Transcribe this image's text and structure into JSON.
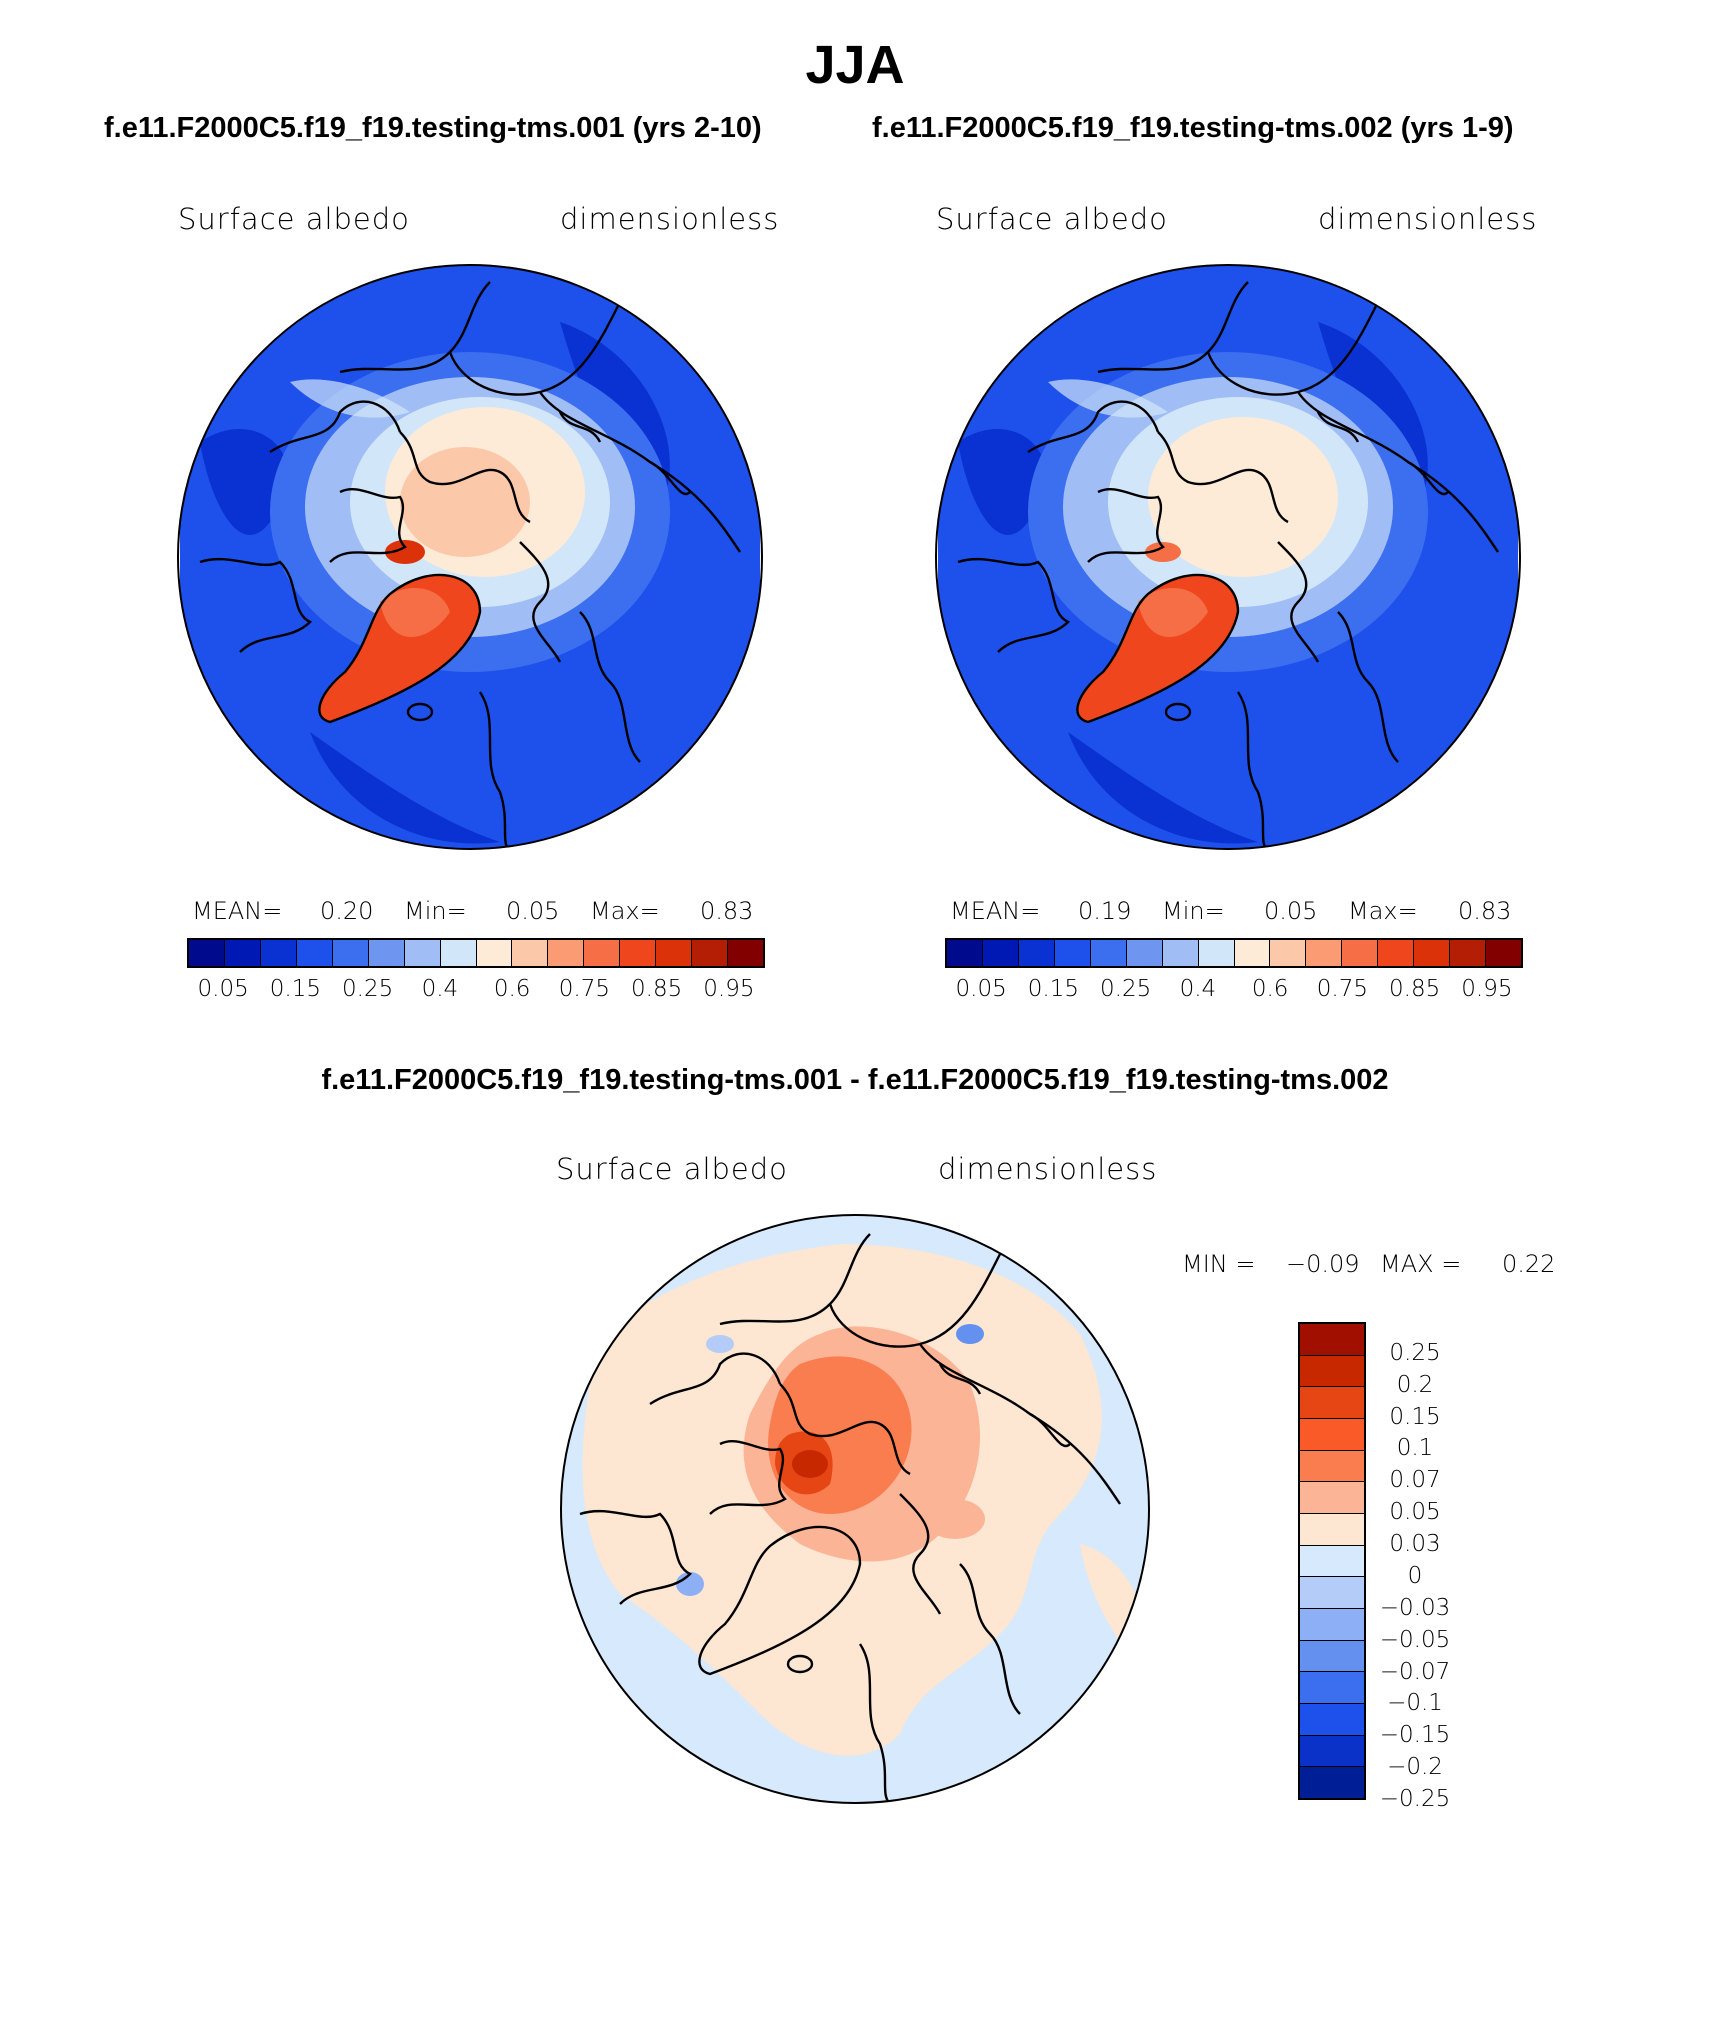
{
  "header": {
    "title": "JJA",
    "case1_title": "f.e11.F2000C5.f19_f19.testing-tms.001 (yrs 2-10)",
    "case2_title": "f.e11.F2000C5.f19_f19.testing-tms.002 (yrs 1-9)",
    "diff_title": "f.e11.F2000C5.f19_f19.testing-tms.001 - f.e11.F2000C5.f19_f19.testing-tms.002"
  },
  "panels": {
    "case1": {
      "variable": "Surface albedo",
      "units": "dimensionless",
      "mean_label": "MEAN=",
      "mean_value": "0.20",
      "min_label": "Min=",
      "min_value": "0.05",
      "max_label": "Max=",
      "max_value": "0.83"
    },
    "case2": {
      "variable": "Surface albedo",
      "units": "dimensionless",
      "mean_label": "MEAN=",
      "mean_value": "0.19",
      "min_label": "Min=",
      "min_value": "0.05",
      "max_label": "Max=",
      "max_value": "0.83"
    },
    "diff": {
      "variable": "Surface albedo",
      "units": "dimensionless",
      "min_label": "MIN =",
      "min_value": "−0.09",
      "max_label": "MAX =",
      "max_value": "0.22"
    }
  },
  "colorbar_abs": {
    "colors": [
      "#000a8c",
      "#0019b4",
      "#0a32d2",
      "#1e50eb",
      "#3c6ef0",
      "#6e96f0",
      "#a0bef5",
      "#d2e6fa",
      "#fdebd7",
      "#fcc8aa",
      "#fa9b73",
      "#f56e46",
      "#f0461e",
      "#dc320a",
      "#b41e05",
      "#820000"
    ],
    "tick_labels": [
      "0.05",
      "0.15",
      "0.25",
      "0.4",
      "0.6",
      "0.75",
      "0.85",
      "0.95"
    ]
  },
  "colorbar_diff": {
    "colors": [
      "#a00f00",
      "#c82800",
      "#e64614",
      "#fa5a28",
      "#fa7d50",
      "#fcb496",
      "#fde6d2",
      "#d7e9fc",
      "#b4cdf8",
      "#8caff5",
      "#6491f0",
      "#3c6ef0",
      "#1e50eb",
      "#0a32c8",
      "#001e96"
    ],
    "tick_labels": [
      "0.25",
      "0.2",
      "0.15",
      "0.1",
      "0.07",
      "0.05",
      "0.03",
      "0",
      "−0.03",
      "−0.05",
      "−0.07",
      "−0.1",
      "−0.15",
      "−0.2",
      "−0.25"
    ]
  }
}
